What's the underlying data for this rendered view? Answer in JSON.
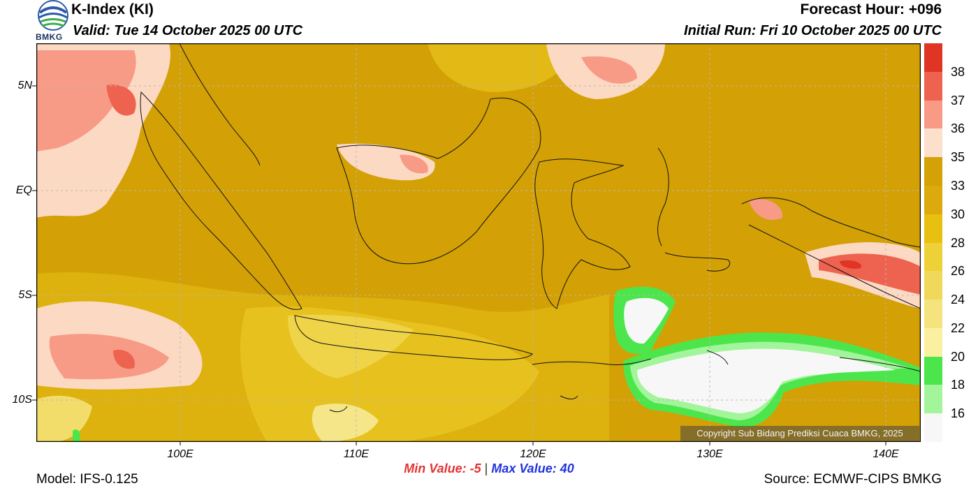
{
  "header": {
    "title": "K-Index (KI)",
    "valid": "Valid: Tue 14 October 2025 00 UTC",
    "forecast_hour": "Forecast Hour: +096",
    "initial_run": "Initial Run: Fri 10 October 2025 00 UTC",
    "logo_text": "BMKG"
  },
  "map": {
    "lat_labels": [
      "5N",
      "EQ",
      "5S",
      "10S"
    ],
    "lon_labels": [
      "100E",
      "110E",
      "120E",
      "130E",
      "140E"
    ],
    "copyright": "Copyright Sub Bidang Prediksi Cuaca BMKG, 2025"
  },
  "colorbar": {
    "labels": [
      "38",
      "37",
      "36",
      "35",
      "33",
      "30",
      "28",
      "26",
      "24",
      "22",
      "20",
      "18",
      "16"
    ],
    "colors": [
      "#e03525",
      "#ee6350",
      "#f89a86",
      "#fde0cc",
      "#d4a106",
      "#dcaa0c",
      "#e8c011",
      "#eed037",
      "#f0d95a",
      "#f5e37e",
      "#fbf09f",
      "#4ce64c",
      "#a2f59a",
      "#f7f7f7"
    ]
  },
  "footer": {
    "min_label": "Min Value:",
    "min_value": "-5",
    "max_label": "Max Value:",
    "max_value": "40",
    "separator": "|",
    "model": "Model: IFS-0.125",
    "source": "Source: ECMWF-CIPS BMKG"
  }
}
